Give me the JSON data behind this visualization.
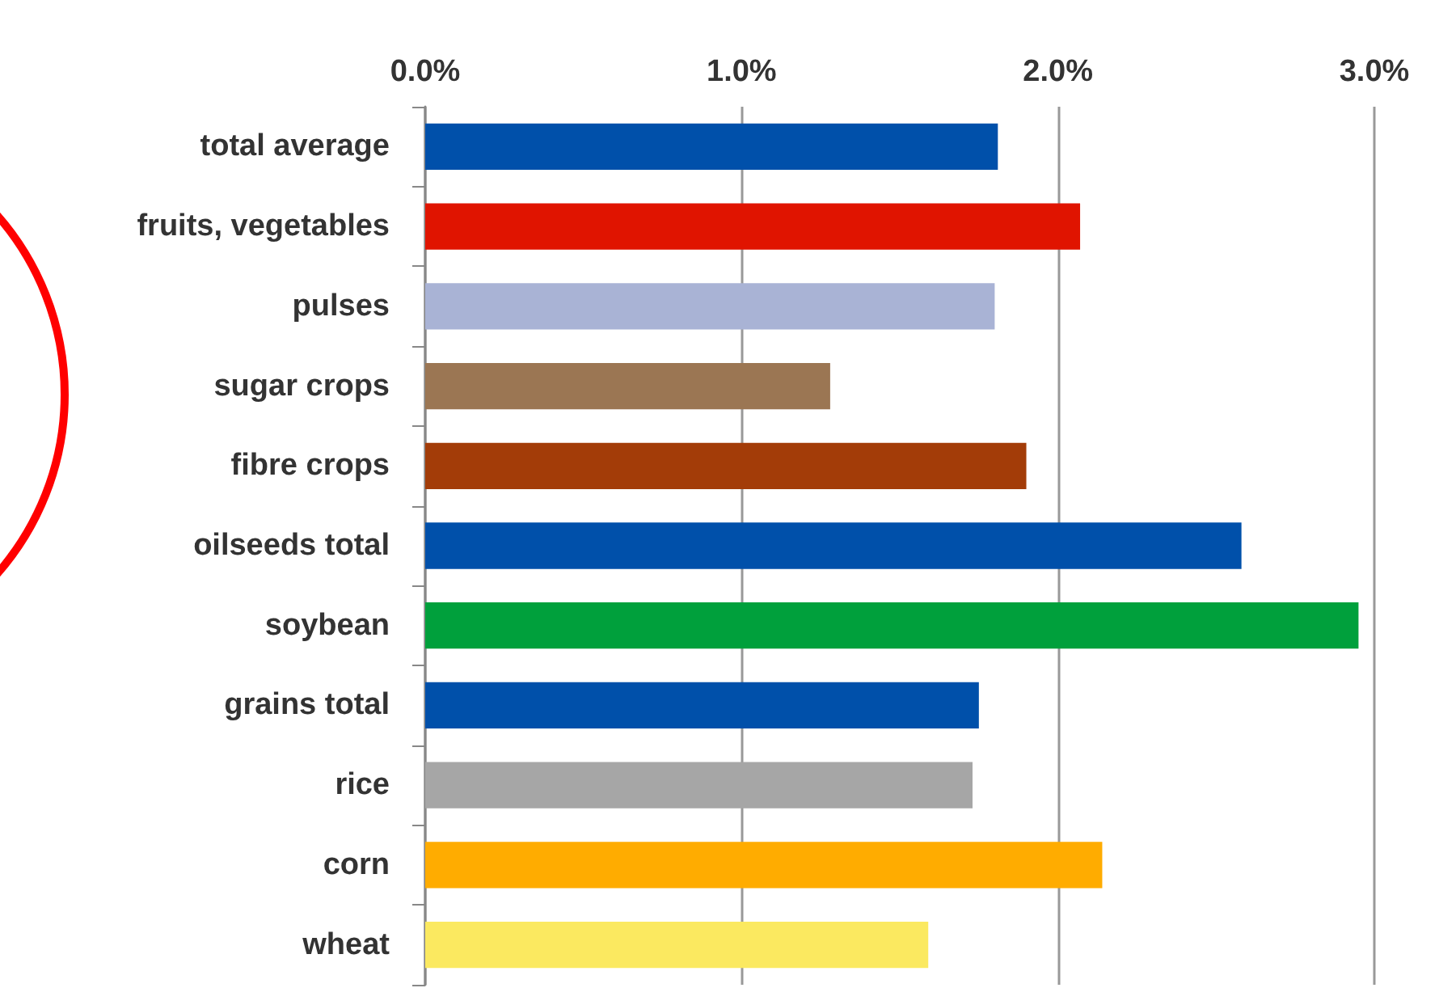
{
  "chart_data": {
    "type": "bar",
    "orientation": "horizontal",
    "categories": [
      "total average",
      "fruits, vegetables",
      "pulses",
      "sugar crops",
      "fibre crops",
      "oilseeds total",
      "soybean",
      "grains total",
      "rice",
      "corn",
      "wheat"
    ],
    "values": [
      1.81,
      2.07,
      1.8,
      1.28,
      1.9,
      2.58,
      2.95,
      1.75,
      1.73,
      2.14,
      1.59
    ],
    "colors": [
      "#0050aa",
      "#e01400",
      "#a9b3d5",
      "#9b7653",
      "#a33c08",
      "#0050aa",
      "#00a03c",
      "#0050aa",
      "#a6a6a6",
      "#ffac00",
      "#fbe960"
    ],
    "xlim": [
      0,
      3
    ],
    "xticks": [
      {
        "value": 0,
        "label": "0.0%"
      },
      {
        "value": 1,
        "label": "1.0%"
      },
      {
        "value": 2,
        "label": "2.0%"
      },
      {
        "value": 3,
        "label": "3.0%"
      }
    ],
    "grid": "x"
  }
}
